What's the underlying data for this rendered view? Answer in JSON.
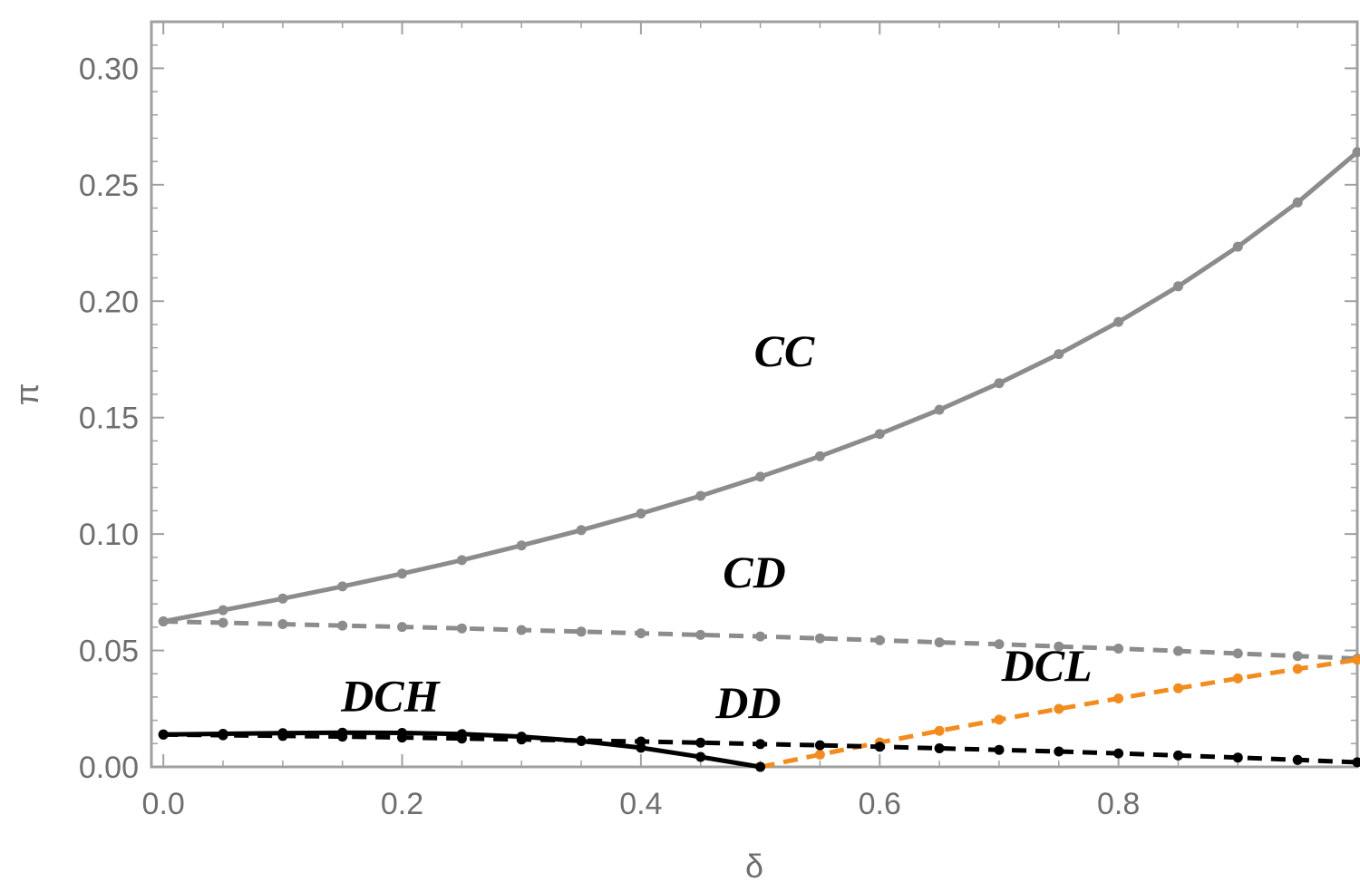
{
  "chart_data": {
    "type": "line",
    "title": "",
    "xlabel": "δ",
    "ylabel": "π",
    "xlim": [
      -0.01,
      1.0
    ],
    "ylim": [
      0.0,
      0.32
    ],
    "x_ticks": [
      "0.0",
      "0.2",
      "0.4",
      "0.6",
      "0.8"
    ],
    "x_tick_values": [
      0.0,
      0.2,
      0.4,
      0.6,
      0.8
    ],
    "y_ticks": [
      "0.00",
      "0.05",
      "0.10",
      "0.15",
      "0.20",
      "0.25",
      "0.30"
    ],
    "y_tick_values": [
      0.0,
      0.05,
      0.1,
      0.15,
      0.2,
      0.25,
      0.3
    ],
    "grid": false,
    "series": [
      {
        "name": "CC",
        "label": "CC",
        "label_at": [
          0.52,
          0.172
        ],
        "color": "#8c8c8c",
        "style": "solid",
        "x": [
          0.0,
          0.05,
          0.1,
          0.15,
          0.2,
          0.25,
          0.3,
          0.35,
          0.4,
          0.45,
          0.5,
          0.55,
          0.6,
          0.65,
          0.7,
          0.75,
          0.8,
          0.85,
          0.9,
          0.95,
          1.0
        ],
        "y": [
          0.0625,
          0.0673,
          0.0723,
          0.0775,
          0.083,
          0.0888,
          0.0951,
          0.1017,
          0.1088,
          0.1164,
          0.1246,
          0.1334,
          0.143,
          0.1534,
          0.1648,
          0.1773,
          0.1911,
          0.2064,
          0.2234,
          0.2424,
          0.264
        ]
      },
      {
        "name": "CD",
        "label": "CD",
        "label_at": [
          0.495,
          0.077
        ],
        "color": "#8c8c8c",
        "style": "dashed",
        "x": [
          0.0,
          0.05,
          0.1,
          0.15,
          0.2,
          0.25,
          0.3,
          0.35,
          0.4,
          0.45,
          0.5,
          0.55,
          0.6,
          0.65,
          0.7,
          0.75,
          0.8,
          0.85,
          0.9,
          0.95,
          1.0
        ],
        "y": [
          0.0625,
          0.0619,
          0.0613,
          0.0607,
          0.0601,
          0.0595,
          0.0588,
          0.0581,
          0.0574,
          0.0567,
          0.056,
          0.0552,
          0.0544,
          0.0535,
          0.0527,
          0.0517,
          0.0508,
          0.0498,
          0.0487,
          0.0476,
          0.0465
        ]
      },
      {
        "name": "DCL",
        "label": "DCL",
        "label_at": [
          0.74,
          0.037
        ],
        "color": "#f28c1e",
        "style": "dashed",
        "x": [
          0.5,
          0.55,
          0.6,
          0.65,
          0.7,
          0.75,
          0.8,
          0.85,
          0.9,
          0.95,
          1.0
        ],
        "y": [
          0.0,
          0.0053,
          0.0105,
          0.0155,
          0.0203,
          0.0249,
          0.0294,
          0.0338,
          0.038,
          0.0421,
          0.046
        ]
      },
      {
        "name": "DD",
        "label": "DD",
        "label_at": [
          0.49,
          0.021
        ],
        "color": "#000000",
        "style": "dashed",
        "x": [
          0.0,
          0.05,
          0.1,
          0.15,
          0.2,
          0.25,
          0.3,
          0.35,
          0.4,
          0.45,
          0.5,
          0.55,
          0.6,
          0.65,
          0.7,
          0.75,
          0.8,
          0.85,
          0.9,
          0.95,
          1.0
        ],
        "y": [
          0.0139,
          0.0136,
          0.0133,
          0.013,
          0.0126,
          0.0122,
          0.0118,
          0.0113,
          0.0109,
          0.0104,
          0.0098,
          0.0093,
          0.0087,
          0.008,
          0.0073,
          0.0066,
          0.0058,
          0.0049,
          0.004,
          0.003,
          0.002
        ]
      },
      {
        "name": "DCH",
        "label": "DCH",
        "label_at": [
          0.19,
          0.024
        ],
        "color": "#000000",
        "style": "solid",
        "x": [
          0.0,
          0.05,
          0.1,
          0.15,
          0.2,
          0.25,
          0.3,
          0.35,
          0.4,
          0.45,
          0.5
        ],
        "y": [
          0.0139,
          0.0142,
          0.0145,
          0.0147,
          0.0146,
          0.0141,
          0.013,
          0.0111,
          0.0082,
          0.0043,
          0.0
        ]
      }
    ]
  }
}
